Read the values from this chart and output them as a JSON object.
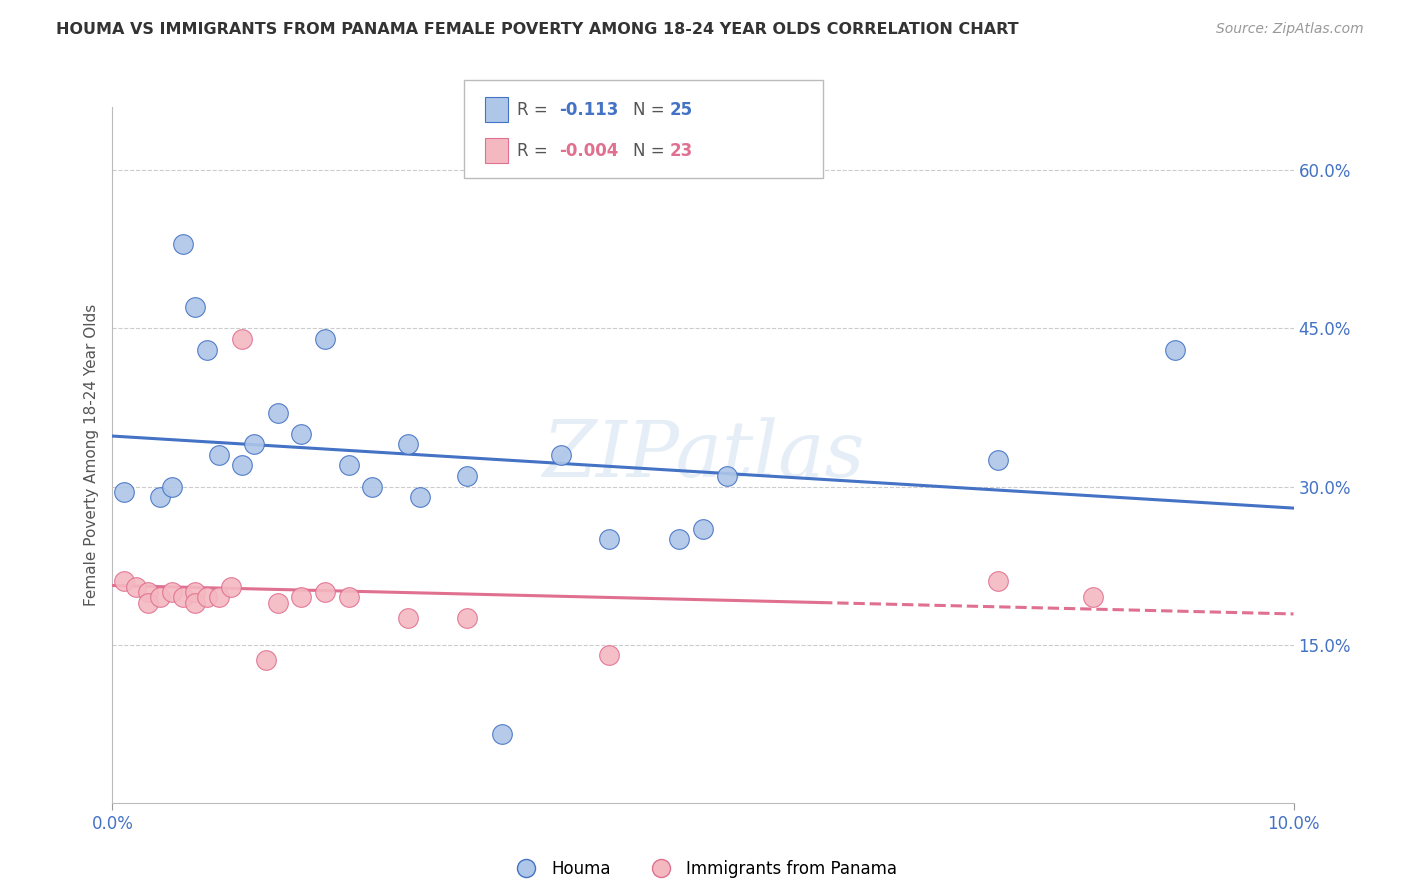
{
  "title": "HOUMA VS IMMIGRANTS FROM PANAMA FEMALE POVERTY AMONG 18-24 YEAR OLDS CORRELATION CHART",
  "source": "Source: ZipAtlas.com",
  "ylabel": "Female Poverty Among 18-24 Year Olds",
  "ytick_labels": [
    "15.0%",
    "30.0%",
    "45.0%",
    "60.0%"
  ],
  "ytick_values": [
    0.15,
    0.3,
    0.45,
    0.6
  ],
  "xlim": [
    0.0,
    0.1
  ],
  "ylim": [
    0.0,
    0.66
  ],
  "watermark": "ZIPatlas",
  "houma_color": "#aec6e8",
  "panama_color": "#f4b8c1",
  "houma_line_color": "#4472c4",
  "panama_line_color": "#e07090",
  "houma_x": [
    0.001,
    0.004,
    0.005,
    0.006,
    0.007,
    0.008,
    0.009,
    0.011,
    0.012,
    0.014,
    0.016,
    0.018,
    0.02,
    0.022,
    0.025,
    0.026,
    0.03,
    0.033,
    0.038,
    0.042,
    0.048,
    0.05,
    0.052,
    0.075,
    0.09
  ],
  "houma_y": [
    0.295,
    0.29,
    0.3,
    0.53,
    0.47,
    0.43,
    0.33,
    0.32,
    0.34,
    0.37,
    0.35,
    0.44,
    0.32,
    0.3,
    0.34,
    0.29,
    0.31,
    0.065,
    0.33,
    0.25,
    0.25,
    0.26,
    0.31,
    0.325,
    0.43
  ],
  "panama_x": [
    0.001,
    0.002,
    0.003,
    0.003,
    0.004,
    0.005,
    0.006,
    0.007,
    0.007,
    0.008,
    0.009,
    0.01,
    0.011,
    0.013,
    0.014,
    0.016,
    0.018,
    0.02,
    0.025,
    0.03,
    0.042,
    0.075,
    0.083
  ],
  "panama_y": [
    0.21,
    0.205,
    0.2,
    0.19,
    0.195,
    0.2,
    0.195,
    0.2,
    0.19,
    0.195,
    0.195,
    0.205,
    0.44,
    0.135,
    0.19,
    0.195,
    0.2,
    0.195,
    0.175,
    0.175,
    0.14,
    0.21,
    0.195
  ],
  "background_color": "#ffffff",
  "grid_color": "#cccccc",
  "title_color": "#333333",
  "axis_label_color": "#4472c4"
}
